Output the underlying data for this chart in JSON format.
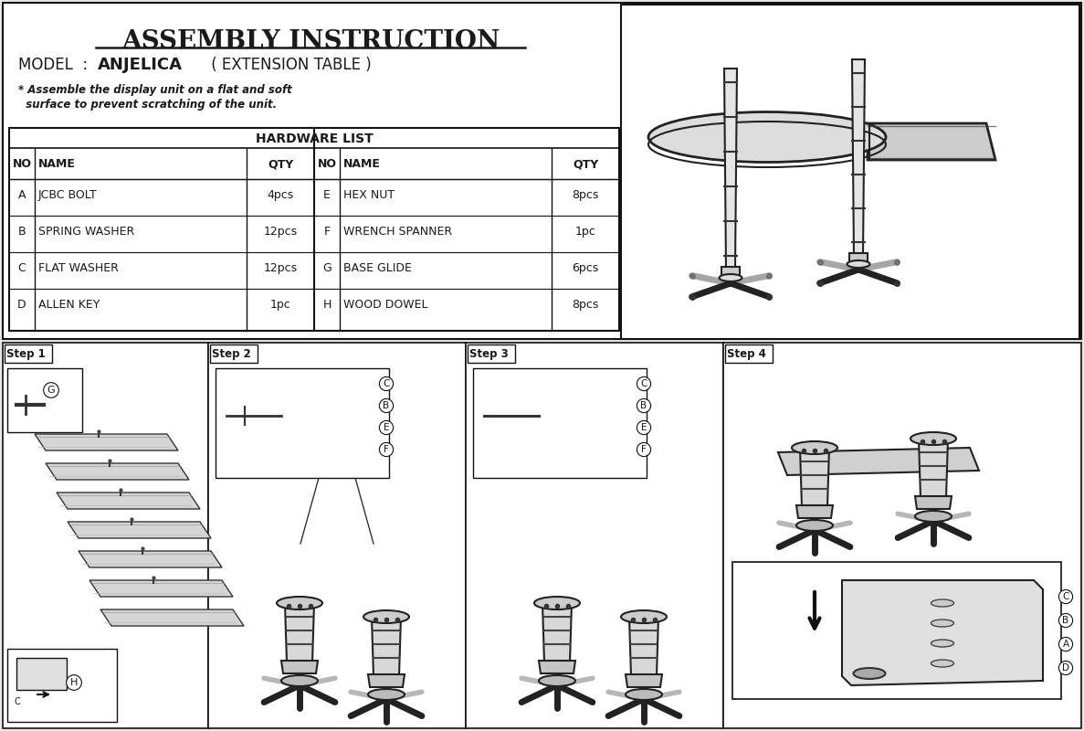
{
  "title": "ASSEMBLY INSTRUCTION",
  "model_prefix": "MODEL  : ",
  "model_bold": "ANJELICA",
  "model_suffix": " ( EXTENSION TABLE )",
  "note_line1": "* Assemble the display unit on a flat and soft",
  "note_line2": "  surface to prevent scratching of the unit.",
  "hardware_title": "HARDWARE LIST",
  "hw_left_headers": [
    "NO",
    "NAME",
    "",
    "QTY"
  ],
  "hw_right_headers": [
    "NO",
    "NAME",
    "",
    "QTY"
  ],
  "hw_left_rows": [
    [
      "A",
      "JCBC BOLT",
      "",
      "4pcs"
    ],
    [
      "B",
      "SPRING WASHER",
      "",
      "12pcs"
    ],
    [
      "C",
      "FLAT WASHER",
      "",
      "12pcs"
    ],
    [
      "D",
      "ALLEN KEY",
      "",
      "1pc"
    ]
  ],
  "hw_right_rows": [
    [
      "E",
      "HEX NUT",
      "",
      "8pcs"
    ],
    [
      "F",
      "WRENCH SPANNER",
      "",
      "1pc"
    ],
    [
      "G",
      "BASE GLIDE",
      "",
      "6pcs"
    ],
    [
      "H",
      "WOOD DOWEL",
      "",
      "8pcs"
    ]
  ],
  "steps": [
    "Step 1",
    "Step 2",
    "Step 3",
    "Step 4"
  ],
  "bg_color": "#e8e8e8",
  "box_bg": "#ffffff",
  "text_color": "#1a1a1a",
  "border_color": "#111111"
}
